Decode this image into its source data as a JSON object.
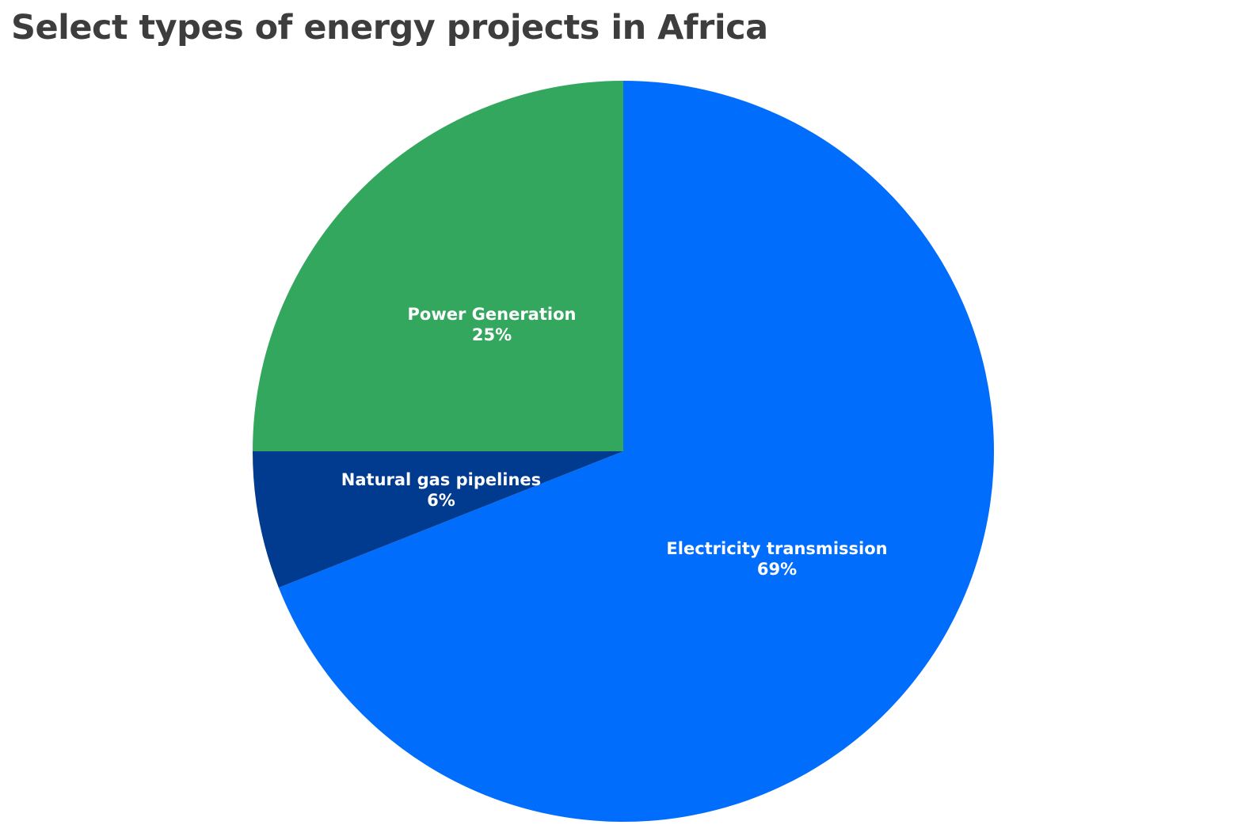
{
  "chart_data": {
    "type": "pie",
    "title": "Select types of energy projects in Africa",
    "start": "top",
    "direction": "clockwise",
    "slices": [
      {
        "name": "Electricity transmission",
        "value": 69,
        "value_label": "69%",
        "color": "#006dfd"
      },
      {
        "name": "Natural gas pipelines",
        "value": 6,
        "value_label": "6%",
        "color": "#003b8f"
      },
      {
        "name": "Power Generation",
        "value": 25,
        "value_label": "25%",
        "color": "#34a75f"
      }
    ]
  }
}
